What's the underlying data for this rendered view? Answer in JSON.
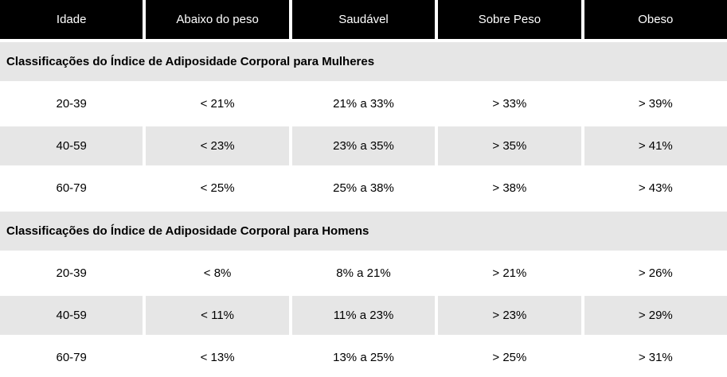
{
  "chart_data": {
    "type": "table",
    "columns": [
      "Idade",
      "Abaixo do peso",
      "Saudável",
      "Sobre Peso",
      "Obeso"
    ],
    "sections": [
      {
        "title": "Classificações do Índice de Adiposidade Corporal para Mulheres",
        "rows": [
          {
            "cells": [
              "20-39",
              "< 21%",
              "21% a 33%",
              "> 33%",
              "> 39%"
            ]
          },
          {
            "cells": [
              "40-59",
              "< 23%",
              "23% a 35%",
              "> 35%",
              "> 41%"
            ]
          },
          {
            "cells": [
              "60-79",
              "< 25%",
              "25% a 38%",
              "> 38%",
              "> 43%"
            ]
          }
        ]
      },
      {
        "title": "Classificações do Índice de Adiposidade Corporal para Homens",
        "rows": [
          {
            "cells": [
              "20-39",
              "< 8%",
              "8% a 21%",
              "> 21%",
              "> 26%"
            ]
          },
          {
            "cells": [
              "40-59",
              "< 11%",
              "11% a 23%",
              "> 23%",
              "> 29%"
            ]
          },
          {
            "cells": [
              "60-79",
              "< 13%",
              "13% a 25%",
              "> 25%",
              "> 31%"
            ]
          }
        ]
      }
    ],
    "layout": {
      "header_bg": "#000000",
      "header_text_color": "#ffffff",
      "stripe_bg": "#e6e6e6",
      "body_text_color": "#000000"
    }
  }
}
